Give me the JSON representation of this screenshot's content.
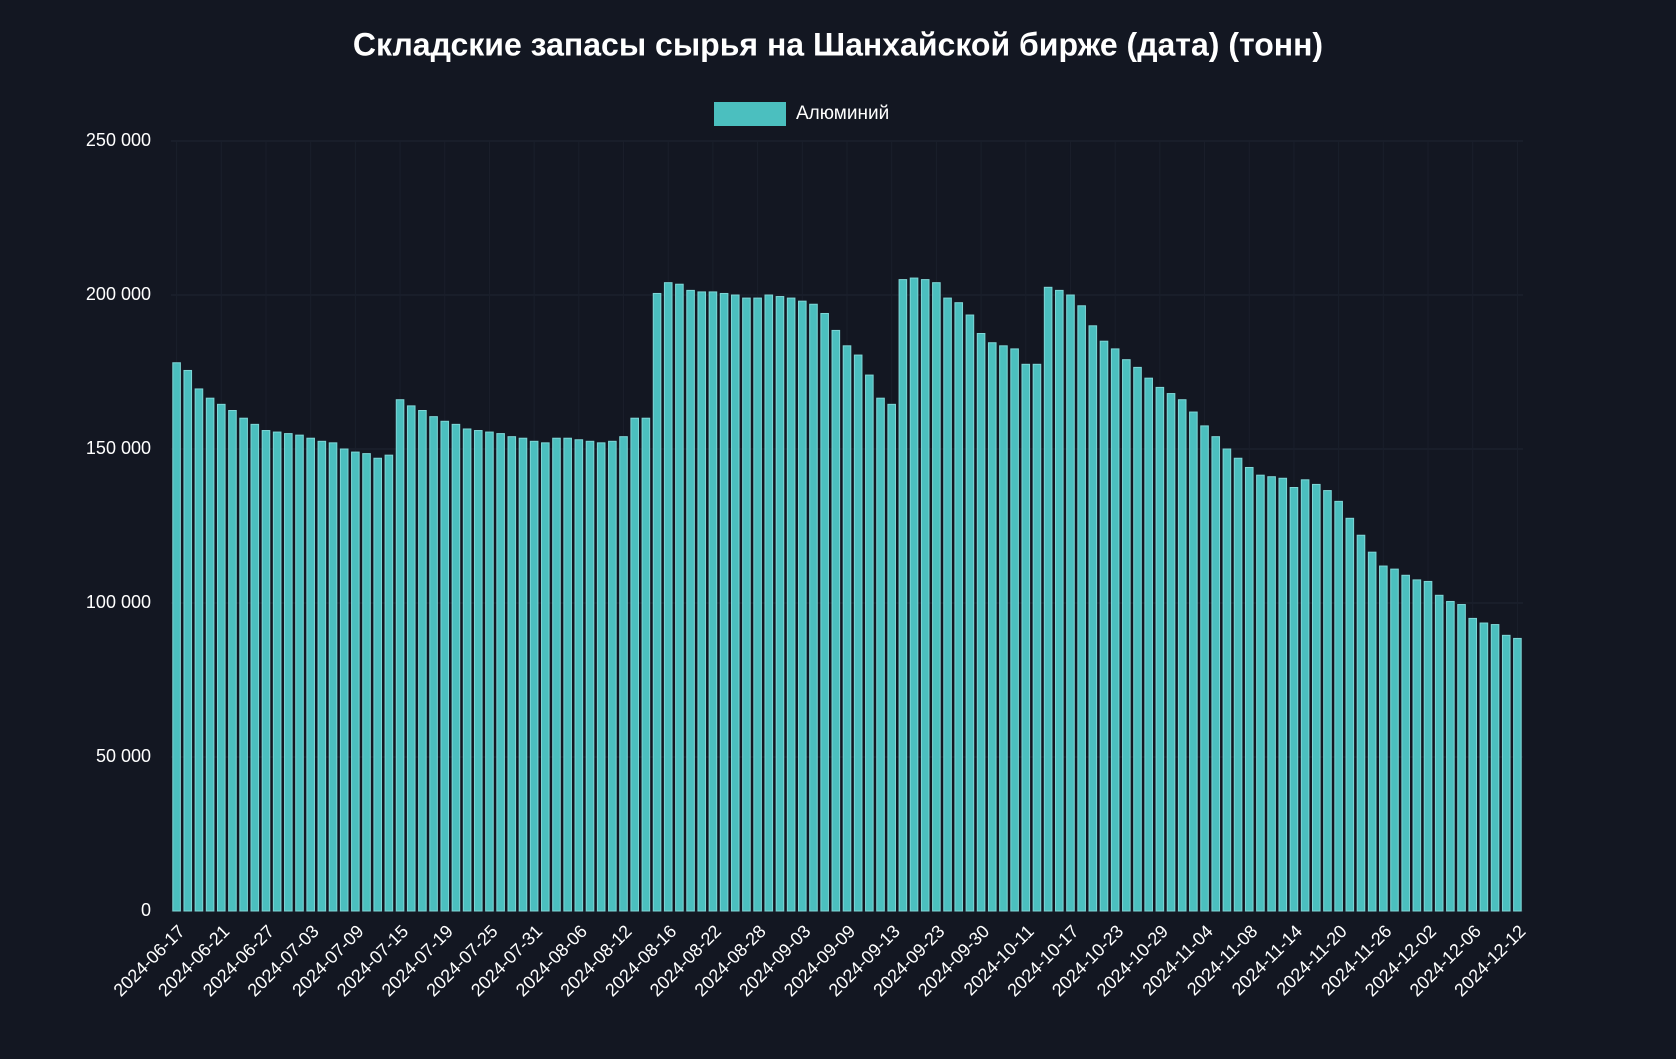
{
  "chart_data": {
    "type": "bar",
    "title": "Складские запасы сырья на Шанхайской бирже (дата)  (тонн)",
    "categories": [
      "2024-06-17",
      null,
      null,
      null,
      "2024-06-21",
      null,
      null,
      null,
      "2024-06-27",
      null,
      null,
      null,
      "2024-07-03",
      null,
      null,
      null,
      "2024-07-09",
      null,
      null,
      null,
      "2024-07-15",
      null,
      null,
      null,
      "2024-07-19",
      null,
      null,
      null,
      "2024-07-25",
      null,
      null,
      null,
      "2024-07-31",
      null,
      null,
      null,
      "2024-08-06",
      null,
      null,
      null,
      "2024-08-12",
      null,
      null,
      null,
      "2024-08-16",
      null,
      null,
      null,
      "2024-08-22",
      null,
      null,
      null,
      "2024-08-28",
      null,
      null,
      null,
      "2024-09-03",
      null,
      null,
      null,
      "2024-09-09",
      null,
      null,
      null,
      "2024-09-13",
      null,
      null,
      null,
      "2024-09-23",
      null,
      null,
      null,
      "2024-09-30",
      null,
      null,
      null,
      "2024-10-11",
      null,
      null,
      null,
      "2024-10-17",
      null,
      null,
      null,
      "2024-10-23",
      null,
      null,
      null,
      "2024-10-29",
      null,
      null,
      null,
      "2024-11-04",
      null,
      null,
      null,
      "2024-11-08",
      null,
      null,
      null,
      "2024-11-14",
      null,
      null,
      null,
      "2024-11-20",
      null,
      null,
      null,
      "2024-11-26",
      null,
      null,
      null,
      "2024-12-02",
      null,
      null,
      null,
      "2024-12-06",
      null,
      null,
      null,
      "2024-12-12"
    ],
    "series": [
      {
        "name": "Алюминий",
        "color": "#4bbfbf",
        "values": [
          178000,
          175500,
          169500,
          166500,
          164500,
          162500,
          160000,
          158000,
          156000,
          155500,
          155000,
          154500,
          153500,
          152500,
          152000,
          150000,
          149000,
          148500,
          147000,
          148000,
          166000,
          164000,
          162500,
          160500,
          159000,
          158000,
          156500,
          156000,
          155500,
          155000,
          154000,
          153500,
          152500,
          152000,
          153500,
          153500,
          153000,
          152500,
          152000,
          152500,
          154000,
          160000,
          160000,
          200500,
          204000,
          203500,
          201500,
          201000,
          201000,
          200500,
          200000,
          199000,
          199000,
          200000,
          199500,
          199000,
          198000,
          197000,
          194000,
          188500,
          183500,
          180500,
          174000,
          166500,
          164500,
          205000,
          205500,
          205000,
          204000,
          199000,
          197500,
          193500,
          187500,
          184500,
          183500,
          182500,
          177500,
          177500,
          202500,
          201500,
          200000,
          196500,
          190000,
          185000,
          182500,
          179000,
          176500,
          173000,
          170000,
          168000,
          166000,
          162000,
          157500,
          154000,
          150000,
          147000,
          144000,
          141500,
          141000,
          140500,
          137500,
          140000,
          138500,
          136500,
          133000,
          127500,
          122000,
          116500,
          112000,
          111000,
          109000,
          107500,
          107000,
          102500,
          100500,
          99500,
          95000,
          93500,
          93000,
          89500,
          88500
        ]
      }
    ],
    "ylim": [
      0,
      250000
    ],
    "yticks": [
      0,
      {
        "value": 50000,
        "label": "50 000"
      },
      {
        "value": 100000,
        "label": "100 000"
      },
      {
        "value": 150000,
        "label": "150 000"
      },
      {
        "value": 200000,
        "label": "200 000"
      },
      {
        "value": 250000,
        "label": "250 000"
      }
    ],
    "grid": true
  }
}
